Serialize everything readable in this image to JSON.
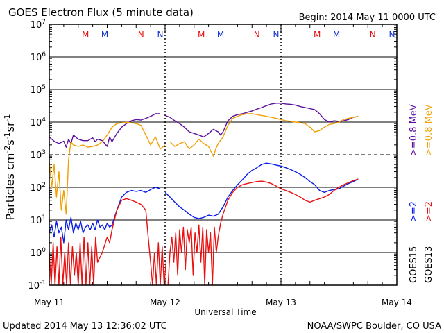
{
  "header": {
    "title": "GOES Electron Flux (5 minute data)",
    "begin": "Begin: 2014 May 11 0000 UTC"
  },
  "footer": {
    "updated": "Updated 2014 May 13 12:36:02 UTC",
    "credit": "NOAA/SWPC Boulder, CO USA"
  },
  "colors": {
    "goes15_08": "#5b0f9e",
    "goes13_08": "#f0a000",
    "goes15_2": "#0a1ee6",
    "goes13_2": "#e81010",
    "marker_m": "#e81010",
    "marker_n": "#1030d0"
  },
  "chart_data": {
    "type": "line",
    "title": "GOES Electron Flux (5 minute data)",
    "xlabel": "Universal Time",
    "ylabel_parts": {
      "base": "Particles cm",
      "e1": "-2",
      "s": "s",
      "e2": "-1",
      "sr": "sr",
      "e3": "-1"
    },
    "x_ticks": [
      "May 11",
      "May 12",
      "May 13",
      "May 14"
    ],
    "xlim": [
      0,
      72
    ],
    "ylim": [
      0.1,
      10000000
    ],
    "y_scale": "log",
    "y_ticks": [
      {
        "base": "10",
        "exp": "-1"
      },
      {
        "base": "10",
        "exp": "0"
      },
      {
        "base": "10",
        "exp": "1"
      },
      {
        "base": "10",
        "exp": "2"
      },
      {
        "base": "10",
        "exp": "3"
      },
      {
        "base": "10",
        "exp": "4"
      },
      {
        "base": "10",
        "exp": "5"
      },
      {
        "base": "10",
        "exp": "6"
      },
      {
        "base": "10",
        "exp": "7"
      }
    ],
    "dashed_threshold": 1000,
    "markers": [
      {
        "label": "M",
        "hour": 7.5,
        "color": "#e81010"
      },
      {
        "label": "M",
        "hour": 11.5,
        "color": "#1030d0"
      },
      {
        "label": "N",
        "hour": 19,
        "color": "#e81010"
      },
      {
        "label": "N",
        "hour": 23,
        "color": "#1030d0"
      },
      {
        "label": "M",
        "hour": 31.5,
        "color": "#e81010"
      },
      {
        "label": "M",
        "hour": 35.5,
        "color": "#1030d0"
      },
      {
        "label": "N",
        "hour": 43,
        "color": "#e81010"
      },
      {
        "label": "N",
        "hour": 47,
        "color": "#1030d0"
      },
      {
        "label": "M",
        "hour": 55.5,
        "color": "#e81010"
      },
      {
        "label": "M",
        "hour": 59.5,
        "color": "#1030d0"
      },
      {
        "label": "N",
        "hour": 67,
        "color": "#e81010"
      },
      {
        "label": "N",
        "hour": 71,
        "color": "#1030d0"
      }
    ],
    "legend_right": {
      "top": [
        {
          "text": ">=0.8  MeV",
          "color": "#5b0f9e"
        },
        {
          "text": ">=0.8  MeV",
          "color": "#f0a000"
        }
      ],
      "mid": [
        {
          "text": ">=2",
          "color": "#0a1ee6"
        },
        {
          "text": ">=2",
          "color": "#e81010"
        }
      ],
      "bottom": [
        {
          "text": "GOES15",
          "color": "#000000"
        },
        {
          "text": "GOES13",
          "color": "#000000"
        }
      ]
    },
    "series": [
      {
        "name": "GOES15 >=0.8 MeV",
        "color": "#5b0f9e",
        "x": [
          0,
          1,
          2,
          3,
          3.5,
          4,
          4.5,
          5,
          6,
          7,
          8,
          9,
          9.5,
          10,
          11,
          12,
          12.5,
          13,
          14,
          15,
          16,
          17,
          18,
          19,
          20,
          21,
          22,
          23,
          null,
          24,
          25,
          26,
          27,
          28,
          29,
          30,
          31,
          32,
          33,
          34,
          35,
          35.5,
          36,
          37,
          38,
          39,
          40,
          41,
          42,
          43,
          44,
          45,
          46,
          47,
          48,
          49,
          50,
          51,
          52,
          53,
          54,
          55,
          56,
          57,
          58,
          59,
          60,
          61,
          62,
          63,
          64
        ],
        "y": [
          3500,
          2600,
          2200,
          2600,
          1700,
          3000,
          2200,
          4000,
          3000,
          2700,
          2700,
          3300,
          2500,
          3000,
          2700,
          1800,
          3500,
          2500,
          4500,
          7000,
          9000,
          11000,
          12000,
          11500,
          13000,
          15000,
          18000,
          18000,
          null,
          16000,
          14000,
          11000,
          9000,
          7000,
          5000,
          4500,
          4000,
          3500,
          4500,
          6000,
          5000,
          4000,
          5000,
          11000,
          15000,
          17000,
          18000,
          20000,
          22000,
          25000,
          28000,
          32000,
          36000,
          38000,
          38000,
          36000,
          35000,
          33000,
          30000,
          28000,
          26000,
          24000,
          18000,
          12000,
          10000,
          11000,
          10500,
          11000,
          12000,
          14000,
          15000
        ]
      },
      {
        "name": "GOES13 >=0.8 MeV",
        "color": "#f0a000",
        "x": [
          0,
          0.5,
          1,
          1.5,
          2,
          2.5,
          3,
          3.5,
          4,
          4.5,
          5,
          6,
          7,
          8,
          9,
          10,
          11,
          12,
          13,
          14,
          15,
          16,
          17,
          18,
          19,
          20,
          21,
          22,
          23,
          24,
          null,
          25,
          26,
          27,
          28,
          29,
          30,
          31,
          32,
          33,
          34,
          34.5,
          35,
          35.5,
          36,
          37,
          38,
          39,
          40,
          41,
          42,
          43,
          44,
          45,
          46,
          47,
          48,
          49,
          50,
          51,
          52,
          53,
          54,
          55,
          56,
          57,
          58,
          59,
          60,
          61,
          62,
          63,
          64
        ],
        "y": [
          600,
          100,
          500,
          50,
          300,
          20,
          80,
          15,
          700,
          2500,
          2000,
          1800,
          2000,
          1700,
          1800,
          2000,
          2500,
          4000,
          7000,
          9000,
          9500,
          9800,
          9500,
          9000,
          8000,
          4000,
          2000,
          3500,
          1500,
          2000,
          null,
          2500,
          1800,
          2200,
          2500,
          1500,
          2000,
          3000,
          2200,
          1800,
          900,
          1500,
          2200,
          2800,
          3500,
          8000,
          13000,
          15000,
          17000,
          18000,
          18000,
          17000,
          16000,
          15000,
          14000,
          13000,
          12000,
          11000,
          10500,
          10000,
          9500,
          9000,
          7000,
          5000,
          5500,
          7000,
          8500,
          9000,
          10000,
          12000,
          13000,
          14000,
          15000
        ]
      },
      {
        "name": "GOES15 >=2 MeV",
        "color": "#0a1ee6",
        "x": [
          0,
          0.5,
          1,
          1.5,
          2,
          2.5,
          3,
          3.5,
          4,
          4.5,
          5,
          5.5,
          6,
          6.5,
          7,
          7.5,
          8,
          8.5,
          9,
          9.5,
          10,
          10.5,
          11,
          11.5,
          12,
          12.5,
          13,
          14,
          15,
          16,
          17,
          18,
          19,
          20,
          21,
          22,
          23,
          null,
          24,
          25,
          26,
          27,
          28,
          29,
          30,
          31,
          32,
          33,
          34,
          35,
          36,
          37,
          38,
          39,
          40,
          41,
          42,
          43,
          44,
          45,
          46,
          47,
          48,
          49,
          50,
          51,
          52,
          53,
          54,
          55,
          56,
          57,
          58,
          59,
          60,
          61,
          62,
          63,
          64
        ],
        "y": [
          4,
          7,
          3,
          9,
          4,
          6,
          2,
          10,
          5,
          12,
          4,
          8,
          5,
          9,
          4,
          6,
          7,
          5,
          8,
          5,
          10,
          6,
          7,
          5,
          8,
          6,
          7,
          20,
          50,
          70,
          80,
          75,
          80,
          70,
          85,
          100,
          90,
          null,
          70,
          50,
          35,
          25,
          20,
          15,
          12,
          11,
          12,
          14,
          13,
          15,
          25,
          50,
          80,
          120,
          170,
          250,
          330,
          400,
          500,
          550,
          520,
          480,
          450,
          400,
          350,
          300,
          250,
          200,
          150,
          120,
          80,
          70,
          80,
          85,
          90,
          110,
          130,
          150,
          180
        ]
      },
      {
        "name": "GOES13 >=2 MeV",
        "color": "#e81010",
        "x": [
          0,
          0.4,
          0.8,
          1.2,
          1.6,
          2,
          2.4,
          2.8,
          3.2,
          3.6,
          4,
          4.4,
          4.8,
          5.2,
          5.6,
          6,
          6.4,
          6.8,
          7.2,
          7.6,
          8,
          8.4,
          8.8,
          9.2,
          9.6,
          10,
          11,
          12,
          12.5,
          13,
          14,
          15,
          16,
          17,
          18,
          19,
          20,
          20.5,
          21,
          21.4,
          21.8,
          22.2,
          22.6,
          23,
          23.4,
          23.8,
          24.2,
          null,
          24.6,
          25,
          25.4,
          25.8,
          26.2,
          26.6,
          27,
          27.4,
          27.8,
          28.2,
          28.6,
          29,
          29.4,
          29.8,
          30.2,
          30.6,
          31,
          31.4,
          31.8,
          32.2,
          32.6,
          33,
          33.4,
          33.8,
          34.2,
          34.6,
          35,
          35.5,
          36,
          37,
          38,
          39,
          40,
          41,
          42,
          43,
          44,
          45,
          46,
          47,
          48,
          49,
          50,
          51,
          52,
          53,
          54,
          55,
          56,
          57,
          58,
          59,
          60,
          61,
          62,
          63,
          64
        ],
        "y": [
          1,
          0.1,
          2,
          0.1,
          1.5,
          0.1,
          3,
          0.1,
          1,
          0.1,
          2,
          0.1,
          1.5,
          0.2,
          1,
          0.1,
          2,
          0.1,
          3,
          0.1,
          2,
          0.1,
          1.5,
          0.1,
          3,
          0.5,
          1,
          3,
          2,
          5,
          20,
          40,
          45,
          40,
          35,
          30,
          20,
          3,
          0.5,
          0.1,
          1,
          0.1,
          2,
          0.1,
          1.5,
          0.1,
          0.5,
          null,
          0.1,
          1,
          3,
          0.5,
          4,
          0.2,
          5,
          1,
          6,
          0.3,
          5,
          2,
          6,
          0.2,
          4,
          1,
          7,
          0.5,
          6,
          0.1,
          5,
          1,
          4,
          0.1,
          6,
          1,
          3,
          8,
          15,
          40,
          70,
          100,
          120,
          130,
          140,
          150,
          155,
          145,
          130,
          110,
          90,
          80,
          70,
          60,
          50,
          40,
          35,
          40,
          45,
          50,
          60,
          80,
          100,
          120,
          140,
          160,
          180
        ]
      }
    ]
  }
}
